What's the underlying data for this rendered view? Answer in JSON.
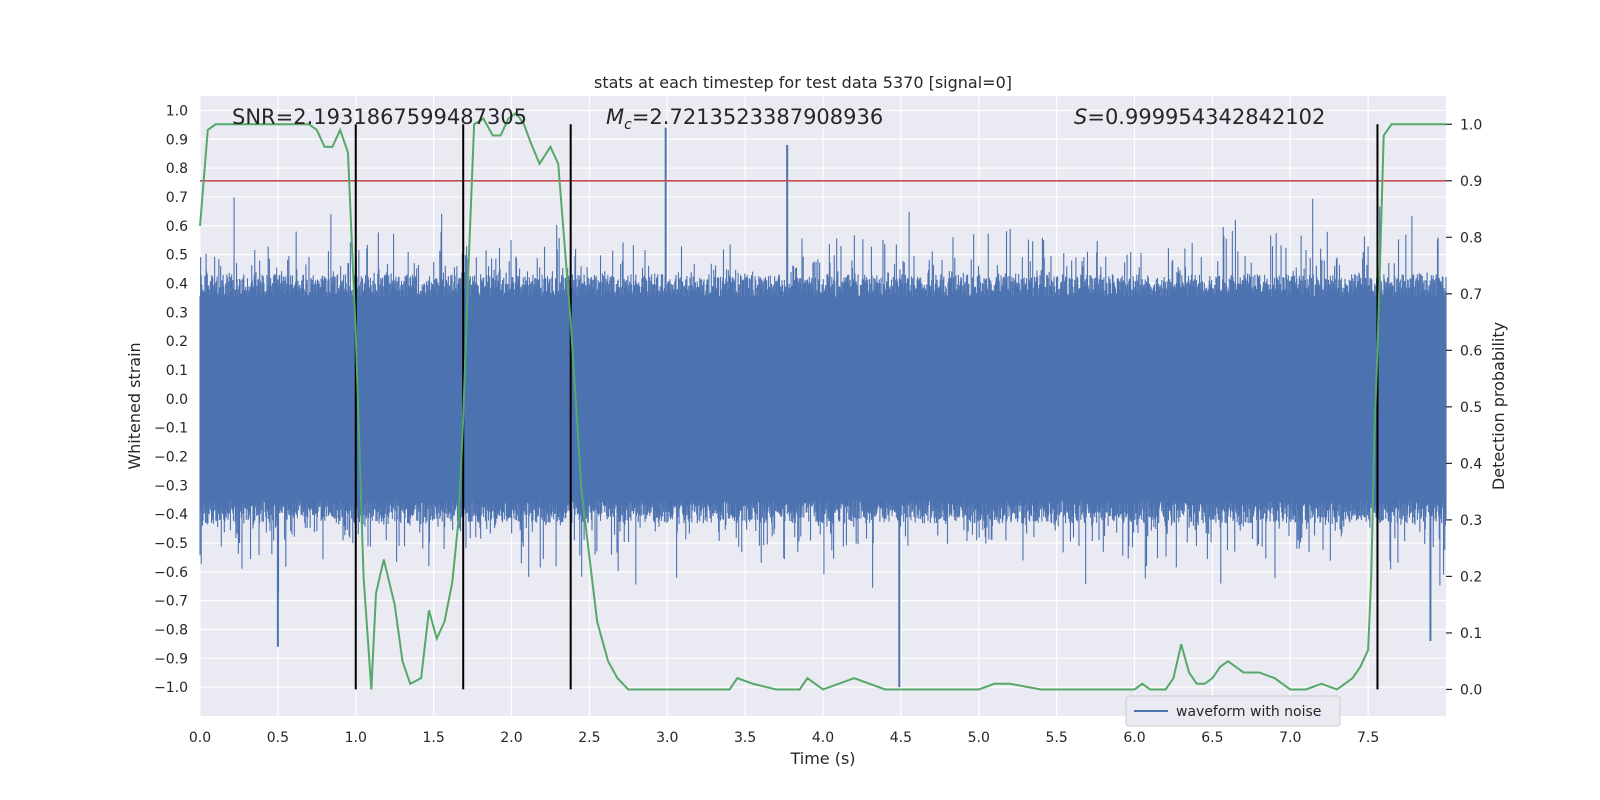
{
  "chart_data": {
    "type": "line",
    "title": "stats at each timestep for test data 5370 [signal=0]",
    "xlabel": "Time (s)",
    "ylabel": "Whitened strain",
    "y2label": "Detection probability",
    "xlim": [
      0.0,
      8.0
    ],
    "ylim": [
      -1.1,
      1.05
    ],
    "y2lim": [
      -0.047,
      1.05
    ],
    "xticks": [
      0.0,
      0.5,
      1.0,
      1.5,
      2.0,
      2.5,
      3.0,
      3.5,
      4.0,
      4.5,
      5.0,
      5.5,
      6.0,
      6.5,
      7.0,
      7.5
    ],
    "yticks": [
      -1.0,
      -0.9,
      -0.8,
      -0.7,
      -0.6,
      -0.5,
      -0.4,
      -0.3,
      -0.2,
      -0.1,
      0.0,
      0.1,
      0.2,
      0.3,
      0.4,
      0.5,
      0.6,
      0.7,
      0.8,
      0.9,
      1.0
    ],
    "y2ticks": [
      0.0,
      0.1,
      0.2,
      0.3,
      0.4,
      0.5,
      0.6,
      0.7,
      0.8,
      0.9,
      1.0
    ],
    "grid": true,
    "annotations": {
      "snr": "SNR=2.1931867599487305",
      "mc_symbol": "M",
      "mc_sub": "c",
      "mc_value": "=2.7213523387908936",
      "s_symbol": "S",
      "s_value": "=0.999954342842102"
    },
    "threshold": 0.9,
    "vertical_lines": [
      1.0,
      1.69,
      2.38,
      7.56
    ],
    "waveform": {
      "name": "waveform with noise",
      "color": "#4c72b0",
      "samples": 2048,
      "core_amplitude": 0.4,
      "peak_amplitude": 0.95,
      "noted_peaks": [
        {
          "t": 2.99,
          "v": 0.94
        },
        {
          "t": 3.77,
          "v": 0.88
        },
        {
          "t": 4.49,
          "v": -1.0
        },
        {
          "t": 0.5,
          "v": -0.86
        },
        {
          "t": 7.9,
          "v": -0.84
        }
      ]
    },
    "probability": {
      "color": "#55a868",
      "t": [
        0.0,
        0.05,
        0.1,
        0.15,
        0.2,
        0.3,
        0.4,
        0.5,
        0.6,
        0.7,
        0.75,
        0.8,
        0.85,
        0.9,
        0.95,
        1.0,
        1.05,
        1.1,
        1.13,
        1.18,
        1.25,
        1.3,
        1.35,
        1.42,
        1.47,
        1.52,
        1.57,
        1.62,
        1.66,
        1.69,
        1.72,
        1.76,
        1.82,
        1.88,
        1.93,
        1.98,
        2.03,
        2.08,
        2.12,
        2.18,
        2.25,
        2.3,
        2.38,
        2.45,
        2.55,
        2.62,
        2.68,
        2.75,
        2.85,
        3.0,
        3.2,
        3.4,
        3.45,
        3.55,
        3.7,
        3.85,
        3.9,
        4.0,
        4.1,
        4.2,
        4.3,
        4.4,
        4.5,
        4.8,
        5.0,
        5.1,
        5.2,
        5.4,
        5.6,
        5.8,
        6.0,
        6.05,
        6.1,
        6.2,
        6.25,
        6.3,
        6.35,
        6.4,
        6.45,
        6.5,
        6.55,
        6.6,
        6.65,
        6.7,
        6.8,
        6.9,
        7.0,
        7.1,
        7.2,
        7.3,
        7.4,
        7.45,
        7.5,
        7.52,
        7.54,
        7.56,
        7.6,
        7.65,
        7.7,
        7.75,
        7.8,
        7.9,
        8.0
      ],
      "p": [
        0.82,
        0.99,
        1.0,
        1.0,
        1.0,
        1.0,
        1.0,
        1.0,
        1.0,
        1.0,
        0.99,
        0.96,
        0.96,
        0.99,
        0.95,
        0.63,
        0.2,
        0.0,
        0.17,
        0.23,
        0.15,
        0.05,
        0.01,
        0.02,
        0.14,
        0.09,
        0.12,
        0.19,
        0.3,
        0.48,
        0.72,
        1.0,
        1.01,
        0.98,
        0.98,
        1.01,
        1.02,
        1.0,
        0.97,
        0.93,
        0.96,
        0.93,
        0.65,
        0.35,
        0.12,
        0.05,
        0.02,
        0.0,
        0.0,
        0.0,
        0.0,
        0.0,
        0.02,
        0.01,
        0.0,
        0.0,
        0.02,
        0.0,
        0.01,
        0.02,
        0.01,
        0.0,
        0.0,
        0.0,
        0.0,
        0.01,
        0.01,
        0.0,
        0.0,
        0.0,
        0.0,
        0.01,
        0.0,
        0.0,
        0.02,
        0.08,
        0.03,
        0.01,
        0.01,
        0.02,
        0.04,
        0.05,
        0.04,
        0.03,
        0.03,
        0.02,
        0.0,
        0.0,
        0.01,
        0.0,
        0.02,
        0.04,
        0.07,
        0.2,
        0.45,
        0.6,
        0.98,
        1.0,
        1.0,
        1.0,
        1.0,
        1.0,
        1.0
      ]
    },
    "legend": {
      "label": "waveform with noise",
      "placement": "lower-right"
    },
    "colors": {
      "axes_bg": "#eaeaf2",
      "grid": "#ffffff",
      "threshold": "#c44e52",
      "vline": "#000000"
    }
  }
}
